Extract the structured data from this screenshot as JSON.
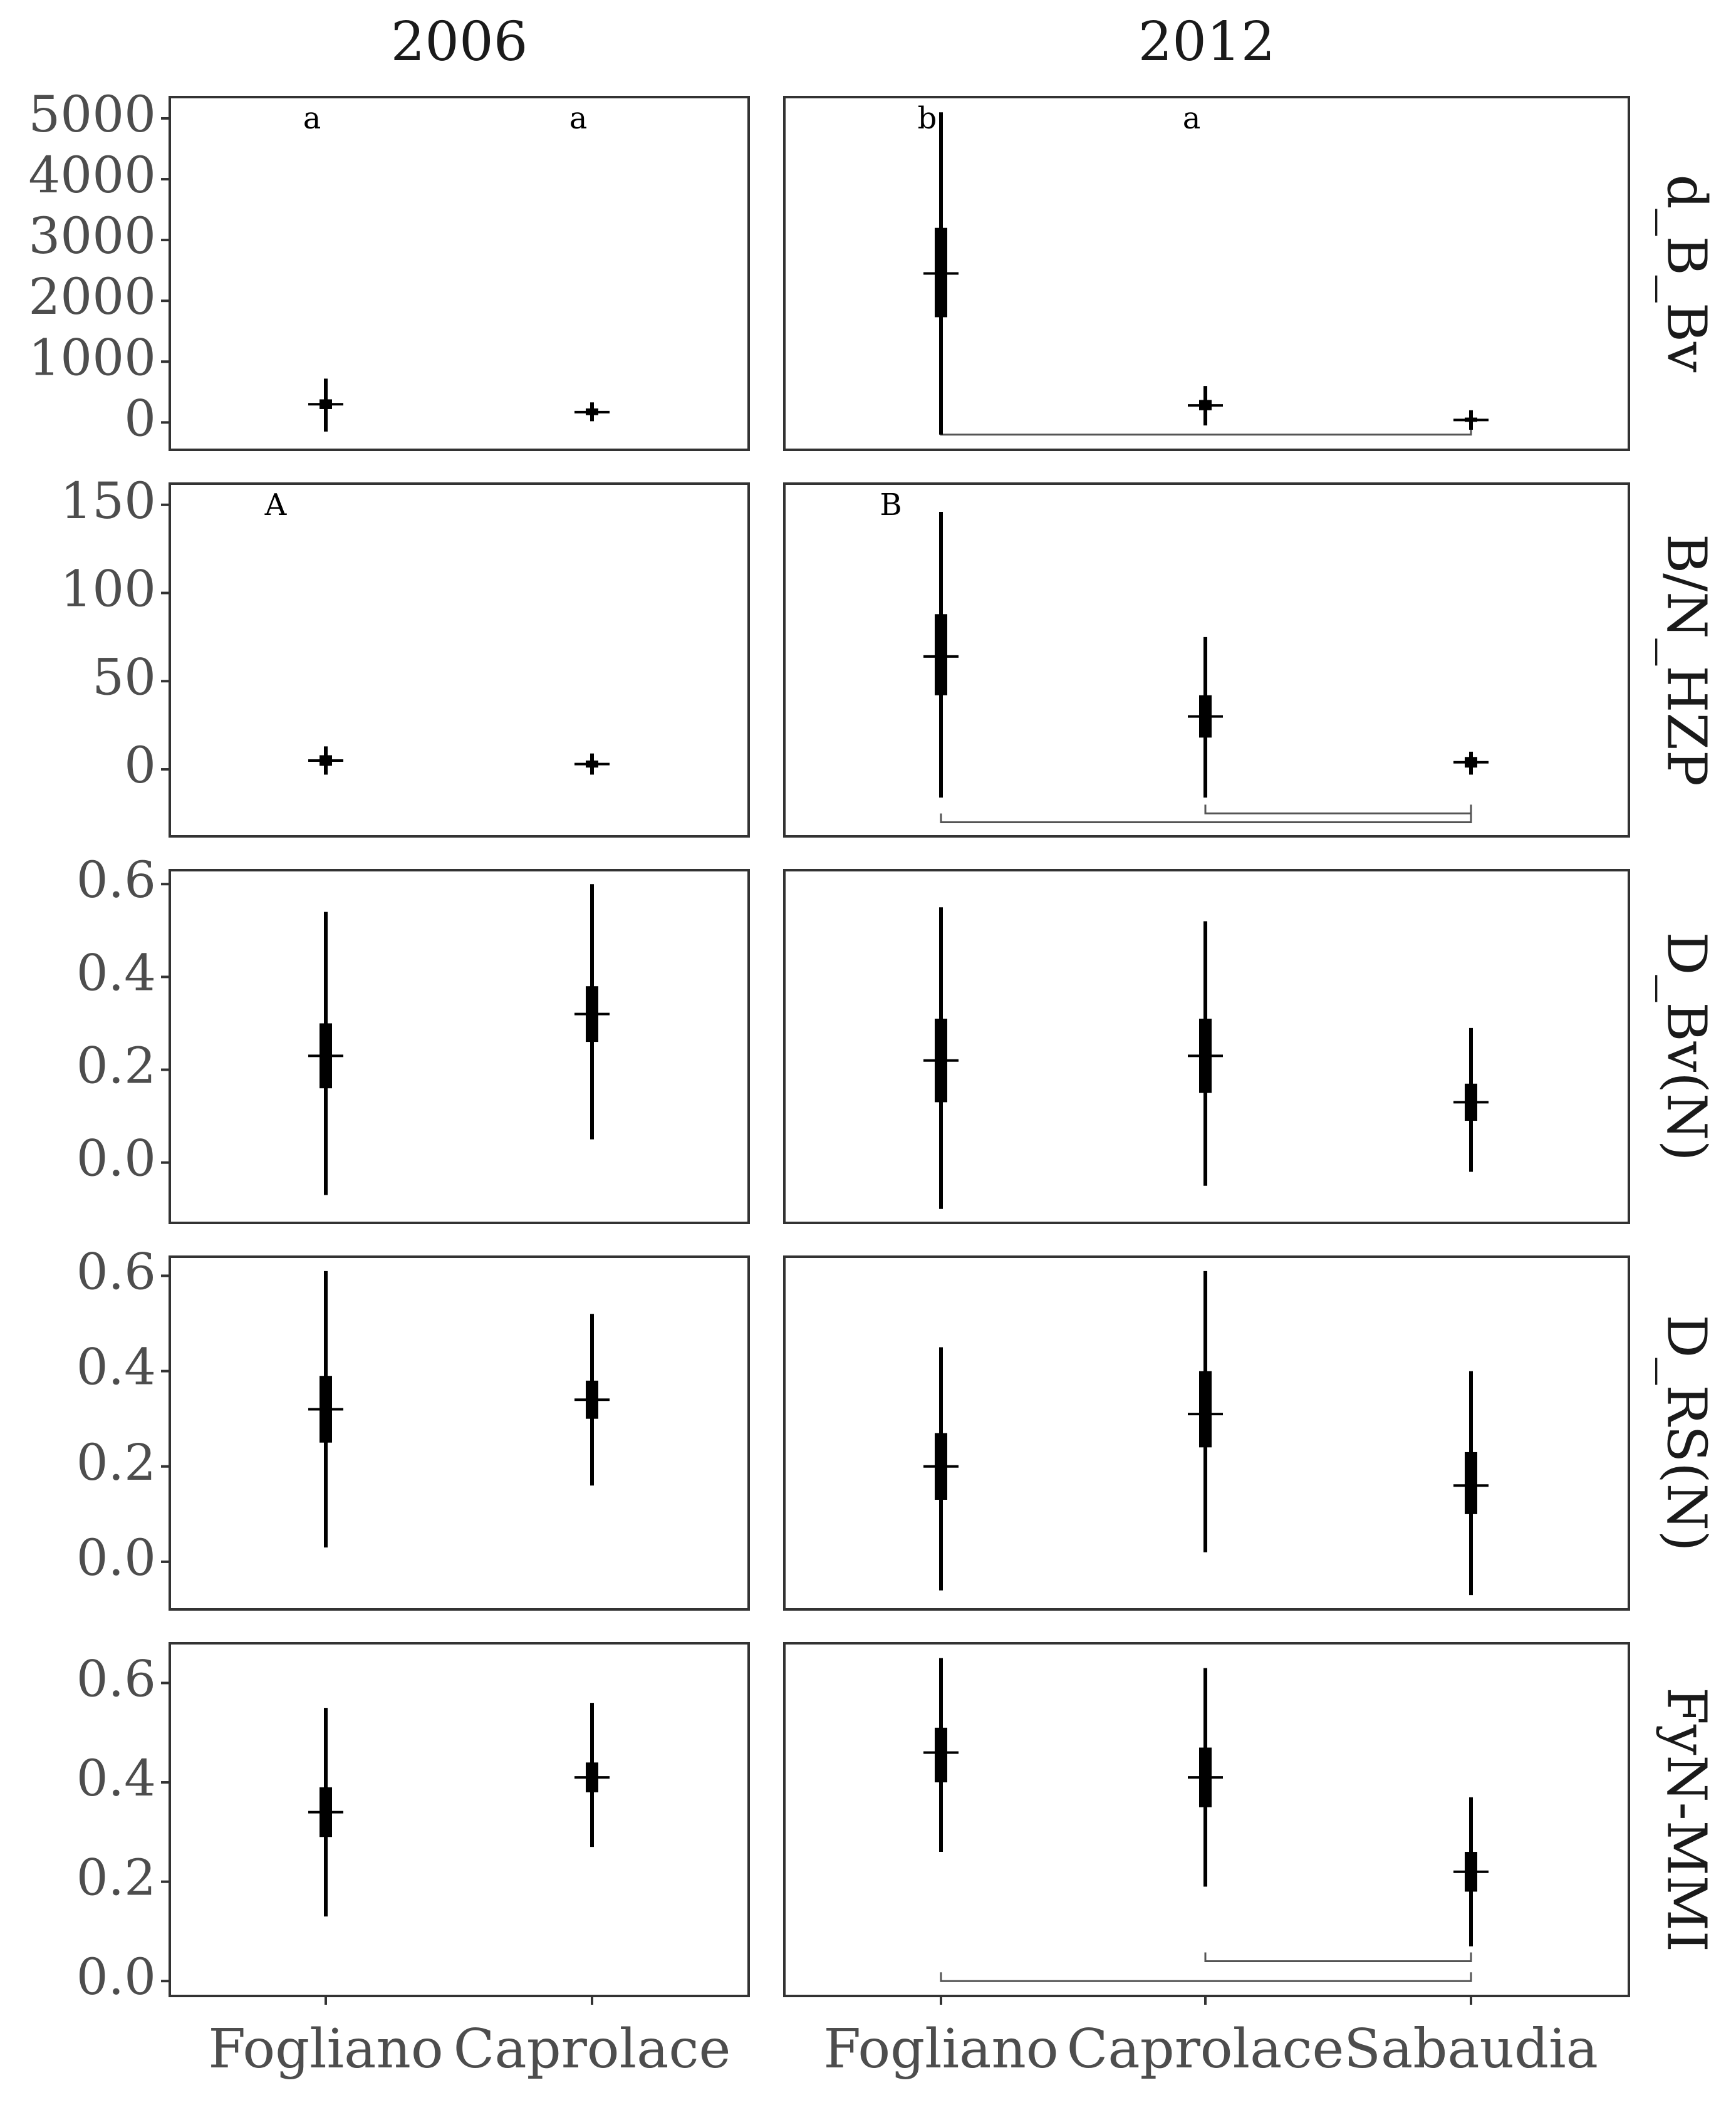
{
  "chart_data": {
    "type": "interval",
    "columns": [
      "2006",
      "2012"
    ],
    "column_categories": [
      [
        "Fogliano",
        "Caprolace"
      ],
      [
        "Fogliano",
        "Caprolace",
        "Sabaudia"
      ]
    ],
    "rows": [
      {
        "label": "d_B_Bv",
        "ylim": [
          -450,
          5350
        ],
        "ticks": [
          0,
          1000,
          2000,
          3000,
          4000,
          5000
        ],
        "tick_labels": [
          "0",
          "1000",
          "2000",
          "3000",
          "4000",
          "5000"
        ],
        "panels": [
          {
            "points": [
              {
                "category": "Fogliano",
                "median": 300,
                "inner": [
                  220,
                  380
                ],
                "outer": [
                  -150,
                  720
                ]
              },
              {
                "category": "Caprolace",
                "median": 170,
                "inner": [
                  120,
                  230
                ],
                "outer": [
                  20,
                  330
                ]
              }
            ],
            "letters": [
              {
                "category": "Fogliano",
                "text": "a"
              },
              {
                "category": "Caprolace",
                "text": "a"
              }
            ],
            "brackets": []
          },
          {
            "points": [
              {
                "category": "Fogliano",
                "median": 2450,
                "inner": [
                  1730,
                  3200
                ],
                "outer": [
                  -200,
                  5100
                ]
              },
              {
                "category": "Caprolace",
                "median": 280,
                "inner": [
                  200,
                  370
                ],
                "outer": [
                  -50,
                  600
                ]
              },
              {
                "category": "Sabaudia",
                "median": 40,
                "inner": [
                  10,
                  80
                ],
                "outer": [
                  -120,
                  200
                ]
              }
            ],
            "letters": [
              {
                "category": "Fogliano",
                "text": "b"
              },
              {
                "category": "Caprolace",
                "text": "a"
              }
            ],
            "brackets": [
              {
                "from": "Fogliano",
                "to": "Sabaudia",
                "value": -200
              }
            ]
          }
        ]
      },
      {
        "label": "B/N_HZP",
        "ylim": [
          -38,
          162
        ],
        "ticks": [
          0,
          50,
          100,
          150
        ],
        "tick_labels": [
          "0",
          "50",
          "100",
          "150"
        ],
        "panels": [
          {
            "points": [
              {
                "category": "Fogliano",
                "median": 5,
                "inner": [
                  2,
                  8
                ],
                "outer": [
                  -3,
                  13
                ]
              },
              {
                "category": "Caprolace",
                "median": 3,
                "inner": [
                  1,
                  5
                ],
                "outer": [
                  -3,
                  9
                ]
              }
            ],
            "letters": [
              {
                "category": "Fogliano",
                "text": "A"
              }
            ],
            "brackets": []
          },
          {
            "points": [
              {
                "category": "Fogliano",
                "median": 64,
                "inner": [
                  42,
                  88
                ],
                "outer": [
                  -16,
                  146
                ]
              },
              {
                "category": "Caprolace",
                "median": 30,
                "inner": [
                  18,
                  42
                ],
                "outer": [
                  -16,
                  75
                ]
              },
              {
                "category": "Sabaudia",
                "median": 4,
                "inner": [
                  1,
                  7
                ],
                "outer": [
                  -3,
                  10
                ]
              }
            ],
            "letters": [
              {
                "category": "Fogliano",
                "text": "B"
              }
            ],
            "brackets": [
              {
                "from": "Caprolace",
                "to": "Sabaudia",
                "value": -25
              },
              {
                "from": "Fogliano",
                "to": "Sabaudia",
                "value": -30
              }
            ]
          }
        ]
      },
      {
        "label": "D_Bv(N)",
        "ylim": [
          -0.13,
          0.63
        ],
        "ticks": [
          0.0,
          0.2,
          0.4,
          0.6
        ],
        "tick_labels": [
          "0.0",
          "0.2",
          "0.4",
          "0.6"
        ],
        "panels": [
          {
            "points": [
              {
                "category": "Fogliano",
                "median": 0.23,
                "inner": [
                  0.16,
                  0.3
                ],
                "outer": [
                  -0.07,
                  0.54
                ]
              },
              {
                "category": "Caprolace",
                "median": 0.32,
                "inner": [
                  0.26,
                  0.38
                ],
                "outer": [
                  0.05,
                  0.6
                ]
              }
            ],
            "letters": [],
            "brackets": []
          },
          {
            "points": [
              {
                "category": "Fogliano",
                "median": 0.22,
                "inner": [
                  0.13,
                  0.31
                ],
                "outer": [
                  -0.1,
                  0.55
                ]
              },
              {
                "category": "Caprolace",
                "median": 0.23,
                "inner": [
                  0.15,
                  0.31
                ],
                "outer": [
                  -0.05,
                  0.52
                ]
              },
              {
                "category": "Sabaudia",
                "median": 0.13,
                "inner": [
                  0.09,
                  0.17
                ],
                "outer": [
                  -0.02,
                  0.29
                ]
              }
            ],
            "letters": [],
            "brackets": []
          }
        ]
      },
      {
        "label": "D_RS(N)",
        "ylim": [
          -0.1,
          0.64
        ],
        "ticks": [
          0.0,
          0.2,
          0.4,
          0.6
        ],
        "tick_labels": [
          "0.0",
          "0.2",
          "0.4",
          "0.6"
        ],
        "panels": [
          {
            "points": [
              {
                "category": "Fogliano",
                "median": 0.32,
                "inner": [
                  0.25,
                  0.39
                ],
                "outer": [
                  0.03,
                  0.61
                ]
              },
              {
                "category": "Caprolace",
                "median": 0.34,
                "inner": [
                  0.3,
                  0.38
                ],
                "outer": [
                  0.16,
                  0.52
                ]
              }
            ],
            "letters": [],
            "brackets": []
          },
          {
            "points": [
              {
                "category": "Fogliano",
                "median": 0.2,
                "inner": [
                  0.13,
                  0.27
                ],
                "outer": [
                  -0.06,
                  0.45
                ]
              },
              {
                "category": "Caprolace",
                "median": 0.31,
                "inner": [
                  0.24,
                  0.4
                ],
                "outer": [
                  0.02,
                  0.61
                ]
              },
              {
                "category": "Sabaudia",
                "median": 0.16,
                "inner": [
                  0.1,
                  0.23
                ],
                "outer": [
                  -0.07,
                  0.4
                ]
              }
            ],
            "letters": [],
            "brackets": []
          }
        ]
      },
      {
        "label": "FyN-MMI",
        "ylim": [
          -0.03,
          0.68
        ],
        "ticks": [
          0.0,
          0.2,
          0.4,
          0.6
        ],
        "tick_labels": [
          "0.0",
          "0.2",
          "0.4",
          "0.6"
        ],
        "panels": [
          {
            "points": [
              {
                "category": "Fogliano",
                "median": 0.34,
                "inner": [
                  0.29,
                  0.39
                ],
                "outer": [
                  0.13,
                  0.55
                ]
              },
              {
                "category": "Caprolace",
                "median": 0.41,
                "inner": [
                  0.38,
                  0.44
                ],
                "outer": [
                  0.27,
                  0.56
                ]
              }
            ],
            "letters": [],
            "brackets": []
          },
          {
            "points": [
              {
                "category": "Fogliano",
                "median": 0.46,
                "inner": [
                  0.4,
                  0.51
                ],
                "outer": [
                  0.26,
                  0.65
                ]
              },
              {
                "category": "Caprolace",
                "median": 0.41,
                "inner": [
                  0.35,
                  0.47
                ],
                "outer": [
                  0.19,
                  0.63
                ]
              },
              {
                "category": "Sabaudia",
                "median": 0.22,
                "inner": [
                  0.18,
                  0.26
                ],
                "outer": [
                  0.07,
                  0.37
                ]
              }
            ],
            "letters": [],
            "brackets": [
              {
                "from": "Caprolace",
                "to": "Sabaudia",
                "value": 0.04
              },
              {
                "from": "Fogliano",
                "to": "Sabaudia",
                "value": 0.0
              }
            ]
          }
        ]
      }
    ]
  }
}
